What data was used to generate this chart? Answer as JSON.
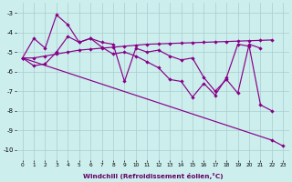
{
  "x": [
    0,
    1,
    2,
    3,
    4,
    5,
    6,
    7,
    8,
    9,
    10,
    11,
    12,
    13,
    14,
    15,
    16,
    17,
    18,
    19,
    20,
    21,
    22,
    23
  ],
  "line_jagged": [
    -5.3,
    -4.3,
    -4.8,
    -3.1,
    -3.6,
    -4.5,
    -4.3,
    -4.5,
    -4.6,
    -6.5,
    -4.8,
    -5.0,
    -4.9,
    -5.2,
    -5.4,
    -5.3,
    -6.3,
    -7.0,
    -6.4,
    -7.1,
    -4.6,
    -4.8,
    null,
    null
  ],
  "line_trend": [
    -5.3,
    -5.3,
    -5.2,
    -5.1,
    -5.0,
    -4.9,
    -4.85,
    -4.8,
    -4.75,
    -4.7,
    -4.65,
    -4.6,
    -4.58,
    -4.56,
    -4.54,
    -4.52,
    -4.5,
    -4.48,
    -4.46,
    -4.44,
    -4.42,
    -4.4,
    -4.38,
    null
  ],
  "line_drop": [
    -5.3,
    -5.7,
    -5.6,
    -5.0,
    -4.2,
    -4.5,
    -4.3,
    -4.75,
    -5.1,
    -5.0,
    -5.2,
    -5.5,
    -5.8,
    -6.4,
    -6.5,
    -7.3,
    -6.6,
    -7.2,
    -6.3,
    -4.6,
    -4.7,
    -7.7,
    -8.0,
    null
  ],
  "line_long": [
    -5.3,
    null,
    null,
    null,
    null,
    null,
    null,
    null,
    null,
    null,
    null,
    null,
    null,
    null,
    null,
    null,
    null,
    null,
    null,
    null,
    null,
    null,
    -9.5,
    -9.8
  ],
  "bg_color": "#cceeed",
  "grid_color": "#aacccc",
  "line_color": "#880088",
  "xlabel": "Windchill (Refroidissement éolien,°C)",
  "xlim": [
    -0.5,
    23.5
  ],
  "ylim": [
    -10.5,
    -2.5
  ],
  "yticks": [
    -10,
    -9,
    -8,
    -7,
    -6,
    -5,
    -4,
    -3
  ],
  "xticks": [
    0,
    1,
    2,
    3,
    4,
    5,
    6,
    7,
    8,
    9,
    10,
    11,
    12,
    13,
    14,
    15,
    16,
    17,
    18,
    19,
    20,
    21,
    22,
    23
  ]
}
